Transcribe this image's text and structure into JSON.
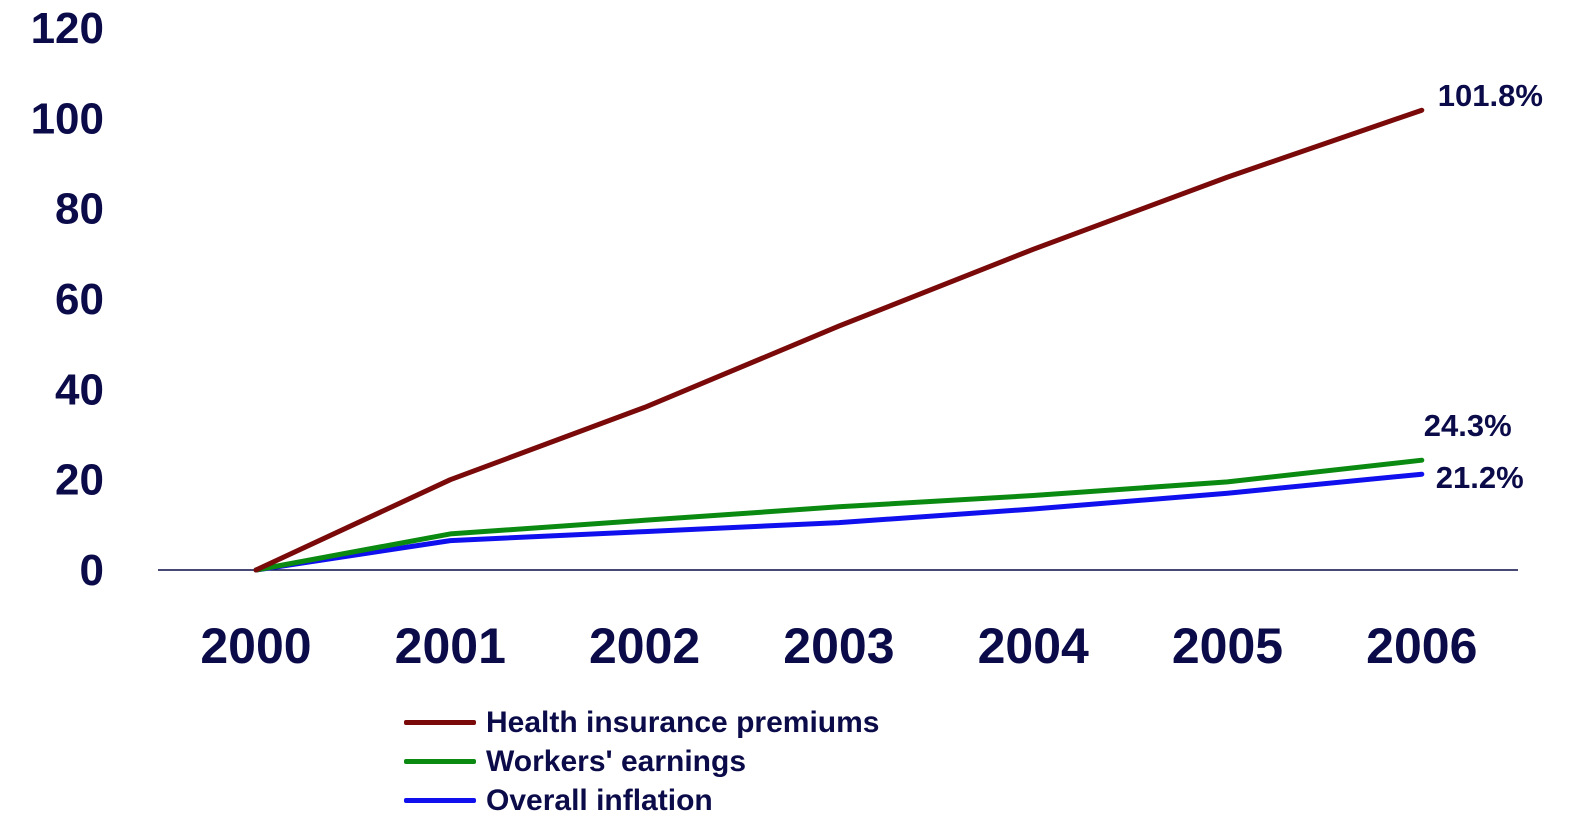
{
  "chart_data": {
    "type": "line",
    "title": "",
    "xlabel": "",
    "ylabel": "",
    "categories": [
      "2000",
      "2001",
      "2002",
      "2003",
      "2004",
      "2005",
      "2006"
    ],
    "ylim": [
      0,
      120
    ],
    "yticks": [
      "0",
      "20",
      "40",
      "60",
      "80",
      "100",
      "120"
    ],
    "grid": false,
    "legend_position": "bottom",
    "series": [
      {
        "name": "Health insurance premiums",
        "color": "#7a0a0a",
        "values": [
          0,
          20,
          36,
          54,
          71,
          87,
          101.8
        ],
        "end_label": "101.8%"
      },
      {
        "name": "Workers' earnings",
        "color": "#0a8a10",
        "values": [
          0,
          8,
          11,
          14,
          16.5,
          19.5,
          24.3
        ],
        "end_label": "24.3%"
      },
      {
        "name": "Overall inflation",
        "color": "#1010ee",
        "values": [
          0,
          6.5,
          8.5,
          10.5,
          13.5,
          17,
          21.2
        ],
        "end_label": "21.2%"
      }
    ],
    "text_color": "#0b0b4a",
    "axis_color": "#0b0b4a"
  }
}
